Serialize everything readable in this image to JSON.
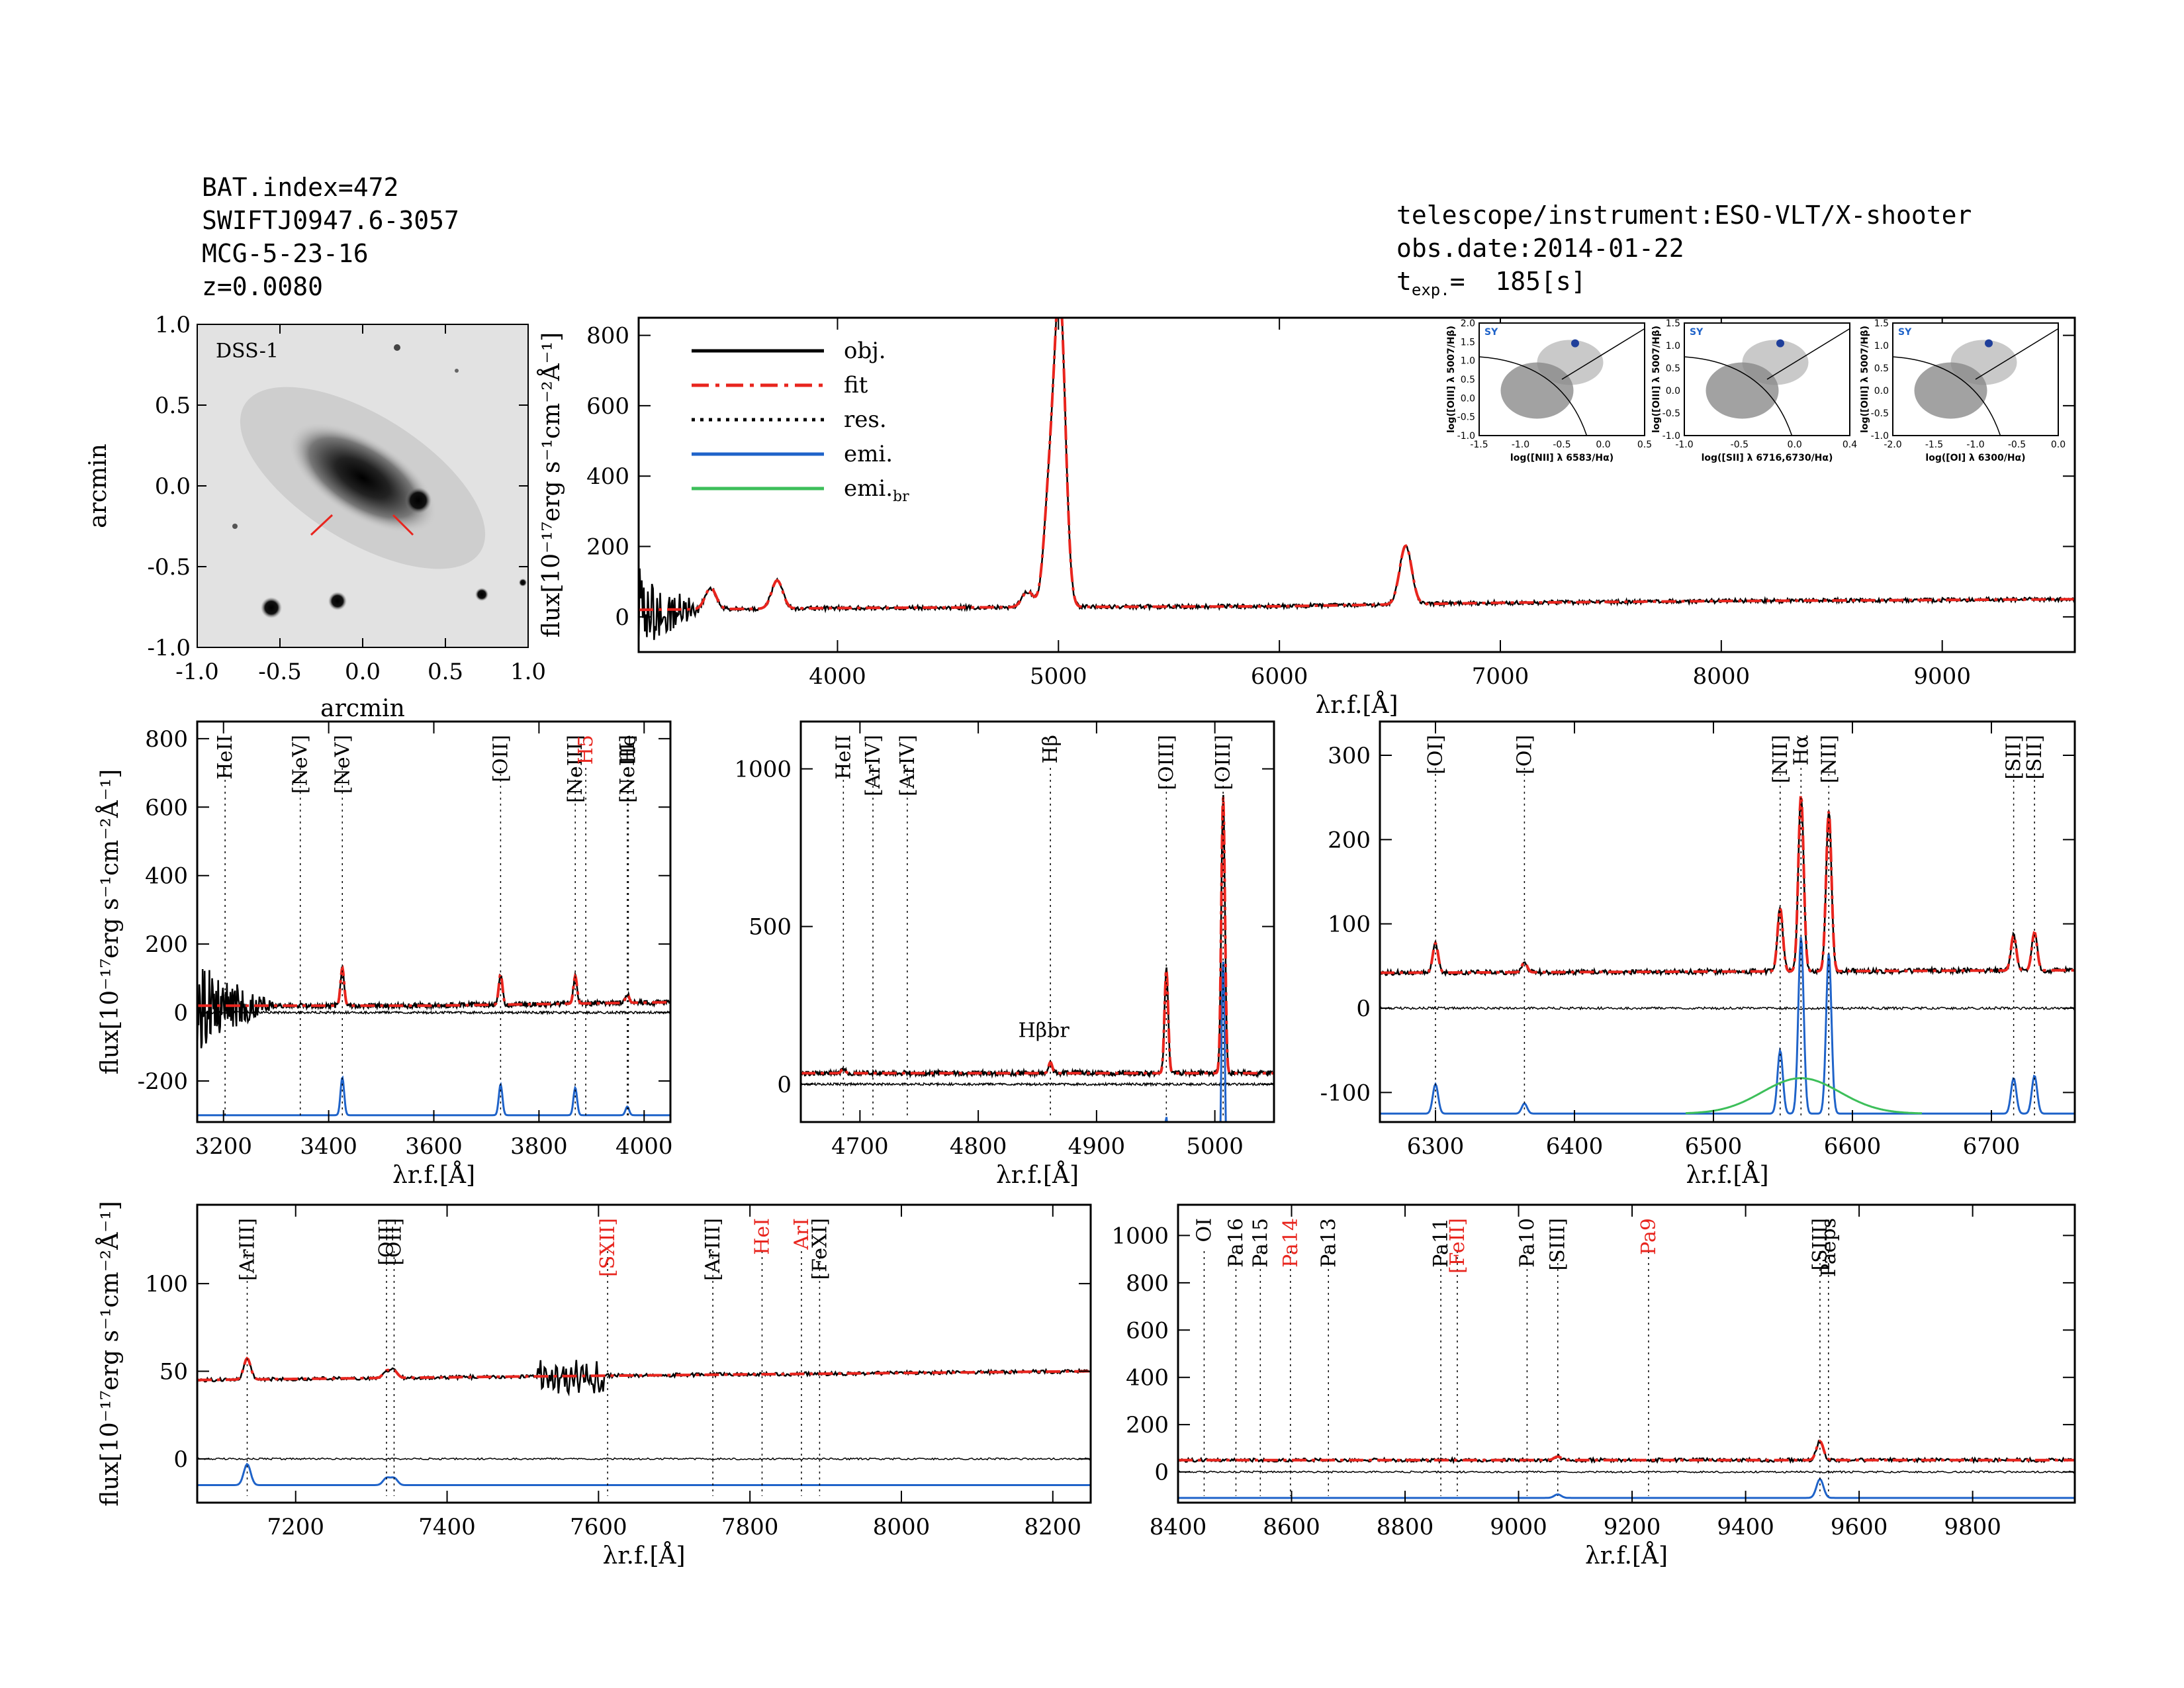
{
  "header": {
    "bat_index": "BAT.index=472",
    "swift_name": "SWIFTJ0947.6-3057",
    "counterpart": "MCG-5-23-16",
    "redshift": "z=0.0080",
    "telescope": "telescope/instrument:ESO-VLT/X-shooter",
    "obs_date": "obs.date:2014-01-22",
    "texp_prefix": "t",
    "texp_sub": "exp.",
    "texp_value": "=  185[s]"
  },
  "image_panel": {
    "label": "DSS-1",
    "xlabel": "arcmin",
    "ylabel": "arcmin",
    "ticks": [
      "-1.0",
      "-0.5",
      "0.0",
      "0.5",
      "1.0"
    ]
  },
  "legend": [
    "obj.",
    "fit",
    "res.",
    "emi.",
    "emi."
  ],
  "legend_sub": "br",
  "flux_label": "flux[10⁻¹⁷erg s⁻¹cm⁻²Å⁻¹]",
  "lambda_label": "λr.f.[Å]",
  "colors": {
    "obj": "#000000",
    "fit": "#e8251e",
    "emi": "#1f63c9",
    "emi_br": "#3dbf5a",
    "red_label": "#e8251e"
  },
  "bpt": [
    {
      "ylabel": "log([OIII] λ 5007/Hβ)",
      "xlabel": "log([NII] λ 6583/Hα)",
      "xticks": [
        "-1.5",
        "-1.0",
        "-0.5",
        "0.0",
        "0.5"
      ],
      "yticks": [
        "-1.0",
        "-0.5",
        "0.0",
        "0.5",
        "1.0",
        "1.5",
        "2.0"
      ],
      "tag": "SY"
    },
    {
      "ylabel": "log([OIII] λ 5007/Hβ)",
      "xlabel": "log([SII] λ 6716,6730/Hα)",
      "xticks": [
        "-1.0",
        "-0.5",
        "0.0",
        "0.4"
      ],
      "yticks": [
        "-1.0",
        "-0.5",
        "0.0",
        "0.5",
        "1.0",
        "1.5"
      ],
      "tag": "SY"
    },
    {
      "ylabel": "log([OIII] λ 5007/Hβ)",
      "xlabel": "log([OI] λ 6300/Hα)",
      "xticks": [
        "-2.0",
        "-1.5",
        "-1.0",
        "-0.5",
        "0.0"
      ],
      "yticks": [
        "-1.0",
        "-0.5",
        "0.0",
        "0.5",
        "1.0",
        "1.5"
      ],
      "tag": "SY"
    }
  ],
  "chart_data": [
    {
      "type": "line",
      "id": "full",
      "xlim": [
        3100,
        9600
      ],
      "ylim": [
        -100,
        850
      ],
      "xticks": [
        4000,
        5000,
        6000,
        7000,
        8000,
        9000
      ],
      "yticks": [
        0,
        200,
        400,
        600,
        800
      ],
      "continuum": [
        [
          3100,
          20
        ],
        [
          4000,
          25
        ],
        [
          5000,
          28
        ],
        [
          6000,
          30
        ],
        [
          7000,
          40
        ],
        [
          8000,
          45
        ],
        [
          9000,
          48
        ],
        [
          9600,
          50
        ]
      ],
      "peaks": [
        [
          3426,
          60
        ],
        [
          3727,
          80
        ],
        [
          4861,
          45
        ],
        [
          4959,
          310
        ],
        [
          5007,
          850
        ],
        [
          6563,
          100
        ],
        [
          6583,
          80
        ]
      ],
      "ylabel": "flux[10⁻¹⁷erg s⁻¹cm⁻²Å⁻¹]",
      "xlabel": "λr.f.[Å]"
    },
    {
      "type": "line",
      "id": "z1",
      "xlim": [
        3150,
        4050
      ],
      "ylim": [
        -320,
        850
      ],
      "xticks": [
        3200,
        3400,
        3600,
        3800,
        4000
      ],
      "yticks": [
        -200,
        0,
        200,
        400,
        600,
        800
      ],
      "continuum": [
        [
          3150,
          20
        ],
        [
          3600,
          20
        ],
        [
          4050,
          30
        ]
      ],
      "peaks": [
        [
          3426,
          110
        ],
        [
          3727,
          90
        ],
        [
          3869,
          80
        ],
        [
          3968,
          25
        ]
      ],
      "residual_level": 0,
      "emission_base": -300,
      "lines": [
        {
          "x": 3203,
          "label": "HeII",
          "color": "black"
        },
        {
          "x": 3346,
          "label": "[NeV]",
          "color": "black"
        },
        {
          "x": 3426,
          "label": "[NeV]",
          "color": "black"
        },
        {
          "x": 3727,
          "label": "[OII]",
          "color": "black"
        },
        {
          "x": 3869,
          "label": "[NeIII]",
          "color": "black"
        },
        {
          "x": 3889,
          "label": "H5",
          "color": "red"
        },
        {
          "x": 3968,
          "label": "[NeIII]",
          "color": "black"
        },
        {
          "x": 3970,
          "label": "He",
          "color": "black"
        }
      ]
    },
    {
      "type": "line",
      "id": "z2",
      "xlim": [
        4650,
        5050
      ],
      "ylim": [
        -120,
        1150
      ],
      "xticks": [
        4700,
        4800,
        4900,
        5000
      ],
      "yticks": [
        0,
        500,
        1000
      ],
      "continuum": [
        [
          4650,
          35
        ],
        [
          5050,
          35
        ]
      ],
      "peaks": [
        [
          4686,
          15
        ],
        [
          4861,
          35
        ],
        [
          4959,
          330
        ],
        [
          5007,
          880
        ]
      ],
      "residual_level": 0,
      "emission_base": -400,
      "lines": [
        {
          "x": 4686,
          "label": "HeII",
          "color": "black"
        },
        {
          "x": 4711,
          "label": "[ArIV]",
          "color": "black"
        },
        {
          "x": 4740,
          "label": "[ArIV]",
          "color": "black"
        },
        {
          "x": 4861,
          "label": "Hβ",
          "color": "black"
        },
        {
          "x": 4959,
          "label": "[OIII]",
          "color": "black"
        },
        {
          "x": 5007,
          "label": "[OIII]",
          "color": "black"
        }
      ],
      "extra_label": {
        "x": 4861,
        "label": "Hβbr"
      }
    },
    {
      "type": "line",
      "id": "z3",
      "xlim": [
        6260,
        6760
      ],
      "ylim": [
        -135,
        340
      ],
      "xticks": [
        6300,
        6400,
        6500,
        6600,
        6700
      ],
      "yticks": [
        -100,
        0,
        100,
        200,
        300
      ],
      "continuum": [
        [
          6260,
          42
        ],
        [
          6760,
          45
        ]
      ],
      "peaks": [
        [
          6300,
          35
        ],
        [
          6364,
          12
        ],
        [
          6548,
          75
        ],
        [
          6563,
          210
        ],
        [
          6583,
          190
        ],
        [
          6716,
          42
        ],
        [
          6731,
          45
        ]
      ],
      "residual_level": 0,
      "emission_base": -125,
      "lines": [
        {
          "x": 6300,
          "label": "[OI]",
          "color": "black"
        },
        {
          "x": 6364,
          "label": "[OI]",
          "color": "black"
        },
        {
          "x": 6548,
          "label": "[NII]",
          "color": "black"
        },
        {
          "x": 6563,
          "label": "Hα",
          "color": "black"
        },
        {
          "x": 6583,
          "label": "[NII]",
          "color": "black"
        },
        {
          "x": 6716,
          "label": "[SII]",
          "color": "black"
        },
        {
          "x": 6731,
          "label": "[SII]",
          "color": "black"
        }
      ]
    },
    {
      "type": "line",
      "id": "z4",
      "xlim": [
        7070,
        8250
      ],
      "ylim": [
        -25,
        145
      ],
      "xticks": [
        7200,
        7400,
        7600,
        7800,
        8000,
        8200
      ],
      "yticks": [
        0,
        50,
        100
      ],
      "continuum": [
        [
          7070,
          45
        ],
        [
          7500,
          47
        ],
        [
          8250,
          50
        ]
      ],
      "peaks": [
        [
          7136,
          12
        ],
        [
          7320,
          4
        ],
        [
          7330,
          4
        ]
      ],
      "residual_level": 0,
      "emission_base": -15,
      "lines": [
        {
          "x": 7136,
          "label": "[ArIII]",
          "color": "black"
        },
        {
          "x": 7320,
          "label": "[OII]",
          "color": "black"
        },
        {
          "x": 7330,
          "label": "[OII]",
          "color": "black"
        },
        {
          "x": 7612,
          "label": "[SXII]",
          "color": "red"
        },
        {
          "x": 7751,
          "label": "[ArIII]",
          "color": "black"
        },
        {
          "x": 7816,
          "label": "HeI",
          "color": "red"
        },
        {
          "x": 7868,
          "label": "ArI",
          "color": "red"
        },
        {
          "x": 7892,
          "label": "[FeXI]",
          "color": "black"
        }
      ]
    },
    {
      "type": "line",
      "id": "z5",
      "xlim": [
        8400,
        9980
      ],
      "ylim": [
        -130,
        1130
      ],
      "xticks": [
        8400,
        8600,
        8800,
        9000,
        9200,
        9400,
        9600,
        9800
      ],
      "yticks": [
        0,
        200,
        400,
        600,
        800,
        1000
      ],
      "continuum": [
        [
          8400,
          50
        ],
        [
          9600,
          50
        ]
      ],
      "peaks": [
        [
          9069,
          15
        ],
        [
          9531,
          80
        ]
      ],
      "residual_level": 0,
      "emission_base": -110,
      "lines": [
        {
          "x": 8446,
          "label": "OI",
          "color": "black"
        },
        {
          "x": 8502,
          "label": "Pa16",
          "color": "black"
        },
        {
          "x": 8545,
          "label": "Pa15",
          "color": "black"
        },
        {
          "x": 8598,
          "label": "Pa14",
          "color": "red"
        },
        {
          "x": 8665,
          "label": "Pa13",
          "color": "black"
        },
        {
          "x": 8863,
          "label": "Pa11",
          "color": "black"
        },
        {
          "x": 8892,
          "label": "[FeII]",
          "color": "red"
        },
        {
          "x": 9015,
          "label": "Pa10",
          "color": "black"
        },
        {
          "x": 9069,
          "label": "[SIII]",
          "color": "black"
        },
        {
          "x": 9229,
          "label": "Pa9",
          "color": "red"
        },
        {
          "x": 9531,
          "label": "[SIII]",
          "color": "black"
        },
        {
          "x": 9546,
          "label": "Paeps",
          "color": "black"
        }
      ]
    }
  ]
}
